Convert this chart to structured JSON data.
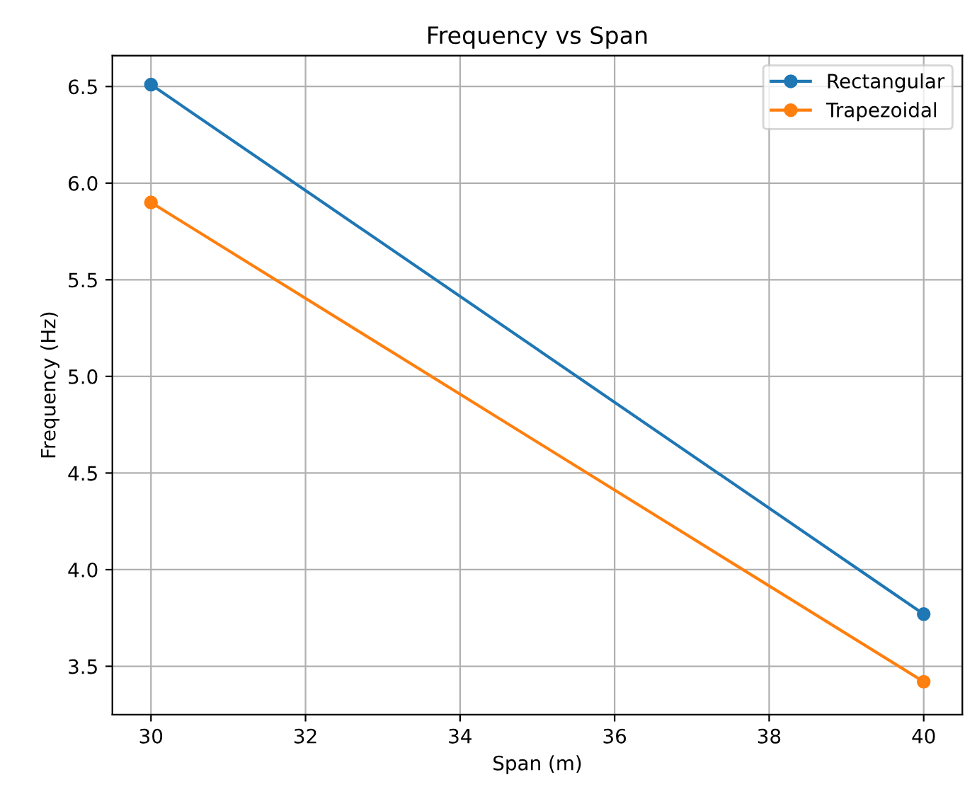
{
  "chart_data": {
    "type": "line",
    "title": "Frequency vs Span",
    "xlabel": "Span (m)",
    "ylabel": "Frequency (Hz)",
    "x": [
      30,
      40
    ],
    "series": [
      {
        "name": "Rectangular",
        "color": "#1f77b4",
        "values": [
          6.51,
          3.77
        ]
      },
      {
        "name": "Trapezoidal",
        "color": "#ff7f0e",
        "values": [
          5.9,
          3.42
        ]
      }
    ],
    "xlim": [
      29.5,
      40.5
    ],
    "ylim": [
      3.25,
      6.66
    ],
    "xticks": [
      30,
      32,
      34,
      36,
      38,
      40
    ],
    "yticks": [
      3.5,
      {
        "value": 4,
        "label": "4.0"
      },
      4.5,
      {
        "value": 5,
        "label": "5.0"
      },
      5.5,
      {
        "value": 6,
        "label": "6.0"
      },
      6.5
    ],
    "grid": true,
    "legend": "top right",
    "marker": "circle",
    "line_style": "solid"
  }
}
